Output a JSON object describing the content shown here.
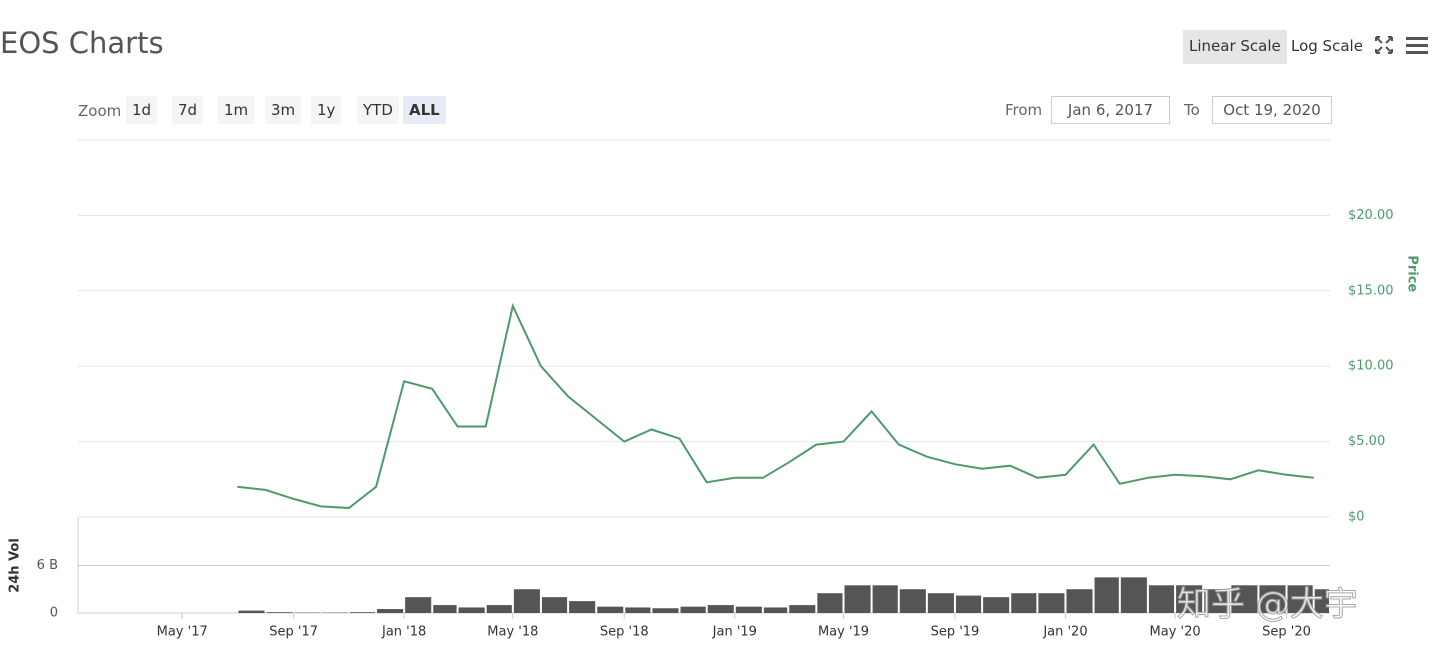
{
  "header": {
    "title": "EOS Charts",
    "scale_buttons": [
      "Linear Scale",
      "Log Scale"
    ],
    "active_scale": 0
  },
  "zoom": {
    "label": "Zoom",
    "buttons": [
      "1d",
      "7d",
      "1m",
      "3m",
      "1y",
      "YTD",
      "ALL"
    ],
    "active": 6
  },
  "range": {
    "from_label": "From",
    "from": "Jan 6, 2017",
    "to_label": "To",
    "to": "Oct 19, 2020"
  },
  "watermark": "知乎 @大宇",
  "chart_data": [
    {
      "type": "line",
      "ylabel": "Price",
      "color": "#4e9a6b",
      "grid": true,
      "xlim": [
        "2017-01-06",
        "2020-10-19"
      ],
      "ylim": [
        0,
        25
      ],
      "yticks": [
        {
          "value": 0,
          "label": "$0"
        },
        {
          "value": 5,
          "label": "$5.00"
        },
        {
          "value": 10,
          "label": "$10.00"
        },
        {
          "value": 15,
          "label": "$15.00"
        },
        {
          "value": 20,
          "label": "$20.00"
        }
      ],
      "x": [
        "2017-07",
        "2017-08",
        "2017-09",
        "2017-10",
        "2017-11",
        "2017-12",
        "2018-01",
        "2018-02",
        "2018-03",
        "2018-04",
        "2018-05",
        "2018-06",
        "2018-07",
        "2018-08",
        "2018-09",
        "2018-10",
        "2018-11",
        "2018-12",
        "2019-01",
        "2019-02",
        "2019-03",
        "2019-04",
        "2019-05",
        "2019-06",
        "2019-07",
        "2019-08",
        "2019-09",
        "2019-10",
        "2019-11",
        "2019-12",
        "2020-01",
        "2020-02",
        "2020-03",
        "2020-04",
        "2020-05",
        "2020-06",
        "2020-07",
        "2020-08",
        "2020-09",
        "2020-10"
      ],
      "values": [
        2.0,
        1.8,
        1.2,
        0.7,
        0.6,
        2.0,
        9.0,
        8.5,
        6.0,
        6.0,
        14.0,
        10.0,
        8.0,
        6.5,
        5.0,
        5.8,
        5.2,
        2.3,
        2.6,
        2.6,
        3.6,
        4.8,
        5.0,
        7.0,
        4.8,
        4.0,
        3.5,
        3.2,
        3.4,
        2.6,
        2.8,
        4.8,
        2.2,
        2.6,
        2.8,
        2.7,
        2.5,
        3.1,
        2.8,
        2.6
      ]
    },
    {
      "type": "bar",
      "ylabel": "24h Vol",
      "color": "#555555",
      "grid": true,
      "xlim": [
        "2017-01-06",
        "2020-10-19"
      ],
      "ylim": [
        0,
        12
      ],
      "yticks": [
        0,
        {
          "value": 6,
          "label": "6 B"
        }
      ],
      "xticks": [
        {
          "value": "2017-05",
          "label": "May '17"
        },
        {
          "value": "2017-09",
          "label": "Sep '17"
        },
        {
          "value": "2018-01",
          "label": "Jan '18"
        },
        {
          "value": "2018-05",
          "label": "May '18"
        },
        {
          "value": "2018-09",
          "label": "Sep '18"
        },
        {
          "value": "2019-01",
          "label": "Jan '19"
        },
        {
          "value": "2019-05",
          "label": "May '19"
        },
        {
          "value": "2019-09",
          "label": "Sep '19"
        },
        {
          "value": "2020-01",
          "label": "Jan '20"
        },
        {
          "value": "2020-05",
          "label": "May '20"
        },
        {
          "value": "2020-09",
          "label": "Sep '20"
        }
      ],
      "x": [
        "2017-07",
        "2017-08",
        "2017-09",
        "2017-10",
        "2017-11",
        "2017-12",
        "2018-01",
        "2018-02",
        "2018-03",
        "2018-04",
        "2018-05",
        "2018-06",
        "2018-07",
        "2018-08",
        "2018-09",
        "2018-10",
        "2018-11",
        "2018-12",
        "2019-01",
        "2019-02",
        "2019-03",
        "2019-04",
        "2019-05",
        "2019-06",
        "2019-07",
        "2019-08",
        "2019-09",
        "2019-10",
        "2019-11",
        "2019-12",
        "2020-01",
        "2020-02",
        "2020-03",
        "2020-04",
        "2020-05",
        "2020-06",
        "2020-07",
        "2020-08",
        "2020-09",
        "2020-10"
      ],
      "values": [
        0.3,
        0.1,
        0.05,
        0.05,
        0.1,
        0.5,
        2,
        1,
        0.7,
        1,
        3,
        2,
        1.5,
        0.8,
        0.7,
        0.6,
        0.8,
        1,
        0.8,
        0.7,
        1,
        2.5,
        3.5,
        3.5,
        3,
        2.5,
        2.2,
        2,
        2.5,
        2.5,
        3,
        4.5,
        4.5,
        3.5,
        3.5,
        3,
        3.5,
        3.5,
        3.5,
        3
      ]
    }
  ]
}
